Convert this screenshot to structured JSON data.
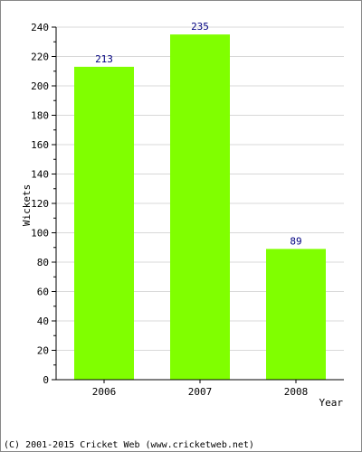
{
  "chart_data": {
    "type": "bar",
    "categories": [
      "2006",
      "2007",
      "2008"
    ],
    "values": [
      213,
      235,
      89
    ],
    "data_labels": [
      "213",
      "235",
      "89"
    ],
    "xlabel": "Year",
    "ylabel": "Wickets",
    "ylim": [
      0,
      240
    ],
    "y_ticks": [
      0,
      20,
      40,
      60,
      80,
      100,
      120,
      140,
      160,
      180,
      200,
      220,
      240
    ],
    "y_tick_labels": [
      "0",
      "20",
      "40",
      "60",
      "80",
      "100",
      "120",
      "140",
      "160",
      "180",
      "200",
      "220",
      "240"
    ],
    "grid": true,
    "legend": "none",
    "bar_color": "#80ff00",
    "label_color": "#000080"
  },
  "footer": {
    "text": "(C) 2001-2015 Cricket Web (www.cricketweb.net)"
  }
}
